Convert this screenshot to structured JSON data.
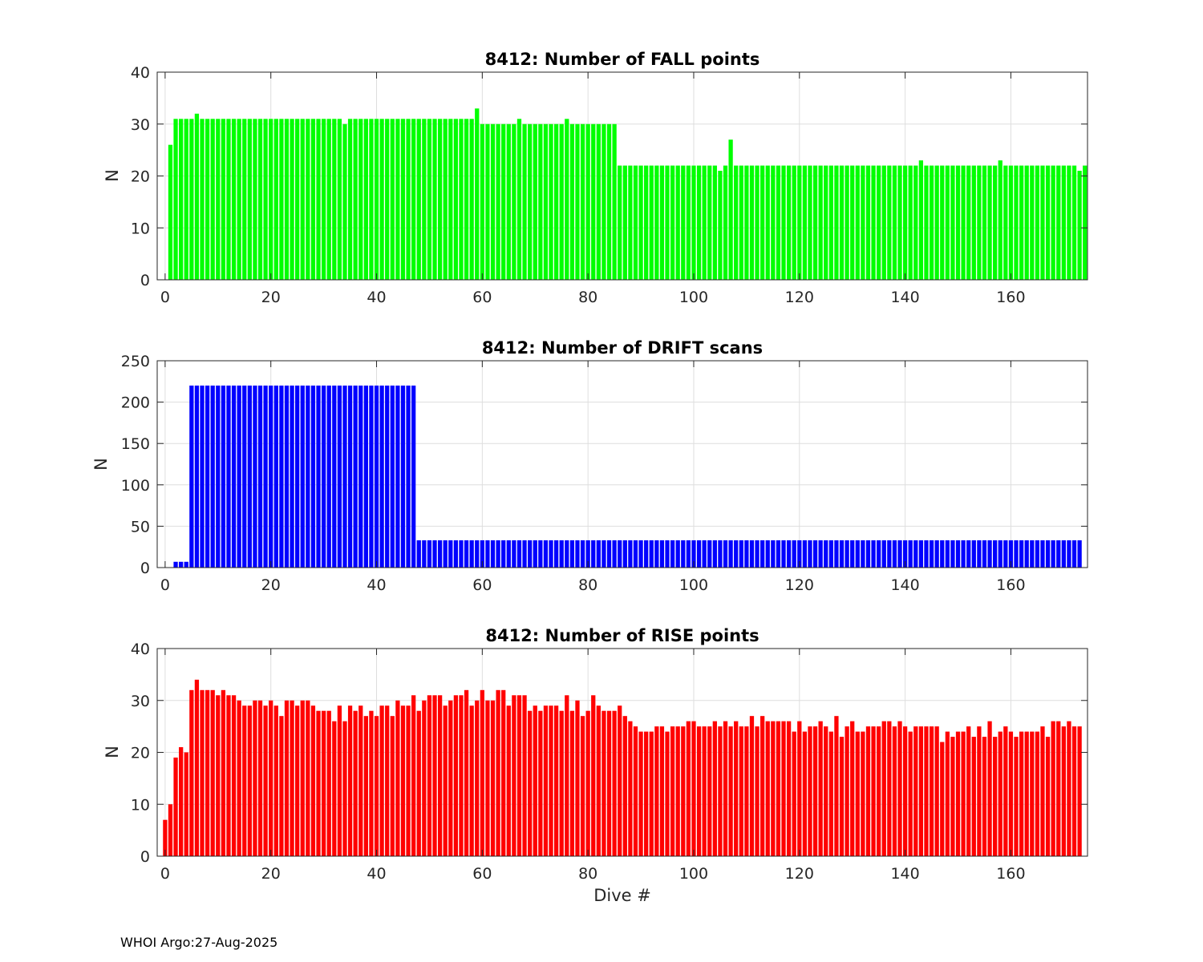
{
  "footer": {
    "note": "WHOI Argo:27-Aug-2025"
  },
  "chart_data": [
    {
      "type": "bar",
      "title": "8412: Number of FALL points",
      "xlabel": "",
      "ylabel": "N",
      "xlim": [
        -1.5,
        174.5
      ],
      "ylim": [
        0,
        40
      ],
      "xticks": [
        0,
        20,
        40,
        60,
        80,
        100,
        120,
        140,
        160
      ],
      "yticks": [
        0,
        10,
        20,
        30,
        40
      ],
      "color": "#00ff00",
      "x_start": 1,
      "values": [
        26,
        31,
        31,
        31,
        31,
        32,
        31,
        31,
        31,
        31,
        31,
        31,
        31,
        31,
        31,
        31,
        31,
        31,
        31,
        31,
        31,
        31,
        31,
        31,
        31,
        31,
        31,
        31,
        31,
        31,
        31,
        31,
        31,
        30,
        31,
        31,
        31,
        31,
        31,
        31,
        31,
        31,
        31,
        31,
        31,
        31,
        31,
        31,
        31,
        31,
        31,
        31,
        31,
        31,
        31,
        31,
        31,
        31,
        33,
        30,
        30,
        30,
        30,
        30,
        30,
        30,
        31,
        30,
        30,
        30,
        30,
        30,
        30,
        30,
        30,
        31,
        30,
        30,
        30,
        30,
        30,
        30,
        30,
        30,
        30,
        22,
        22,
        22,
        22,
        22,
        22,
        22,
        22,
        22,
        22,
        22,
        22,
        22,
        22,
        22,
        22,
        22,
        22,
        22,
        21,
        22,
        27,
        22,
        22,
        22,
        22,
        22,
        22,
        22,
        22,
        22,
        22,
        22,
        22,
        22,
        22,
        22,
        22,
        22,
        22,
        22,
        22,
        22,
        22,
        22,
        22,
        22,
        22,
        22,
        22,
        22,
        22,
        22,
        22,
        22,
        22,
        22,
        23,
        22,
        22,
        22,
        22,
        22,
        22,
        22,
        22,
        22,
        22,
        22,
        22,
        22,
        22,
        23,
        22,
        22,
        22,
        22,
        22,
        22,
        22,
        22,
        22,
        22,
        22,
        22,
        22,
        22,
        21,
        22
      ]
    },
    {
      "type": "bar",
      "title": "8412: Number of DRIFT scans",
      "xlabel": "",
      "ylabel": "N",
      "xlim": [
        -1.5,
        174.5
      ],
      "ylim": [
        0,
        250
      ],
      "xticks": [
        0,
        20,
        40,
        60,
        80,
        100,
        120,
        140,
        160
      ],
      "yticks": [
        0,
        50,
        100,
        150,
        200,
        250
      ],
      "color": "#0000ff",
      "x_start": 0,
      "values": [
        0,
        0,
        7,
        7,
        7,
        220,
        220,
        220,
        220,
        220,
        220,
        220,
        220,
        220,
        220,
        220,
        220,
        220,
        220,
        220,
        220,
        220,
        220,
        220,
        220,
        220,
        220,
        220,
        220,
        220,
        220,
        220,
        220,
        220,
        220,
        220,
        220,
        220,
        220,
        220,
        220,
        220,
        220,
        220,
        220,
        220,
        220,
        220,
        33,
        33,
        33,
        33,
        33,
        33,
        33,
        33,
        33,
        33,
        33,
        33,
        33,
        33,
        33,
        33,
        33,
        33,
        33,
        33,
        33,
        33,
        33,
        33,
        33,
        33,
        33,
        33,
        33,
        33,
        33,
        33,
        33,
        33,
        33,
        33,
        33,
        33,
        33,
        33,
        33,
        33,
        33,
        33,
        33,
        33,
        33,
        33,
        33,
        33,
        33,
        33,
        33,
        33,
        33,
        33,
        33,
        33,
        33,
        33,
        33,
        33,
        33,
        33,
        33,
        33,
        33,
        33,
        33,
        33,
        33,
        33,
        33,
        33,
        33,
        33,
        33,
        33,
        33,
        33,
        33,
        33,
        33,
        33,
        33,
        33,
        33,
        33,
        33,
        33,
        33,
        33,
        33,
        33,
        33,
        33,
        33,
        33,
        33,
        33,
        33,
        33,
        33,
        33,
        33,
        33,
        33,
        33,
        33,
        33,
        33,
        33,
        33,
        33,
        33,
        33,
        33,
        33,
        33,
        33,
        33,
        33,
        33,
        33,
        33,
        33
      ]
    },
    {
      "type": "bar",
      "title": "8412: Number of RISE points",
      "xlabel": "Dive #",
      "ylabel": "N",
      "xlim": [
        -1.5,
        174.5
      ],
      "ylim": [
        0,
        40
      ],
      "xticks": [
        0,
        20,
        40,
        60,
        80,
        100,
        120,
        140,
        160
      ],
      "yticks": [
        0,
        10,
        20,
        30,
        40
      ],
      "color": "#ff0000",
      "x_start": 0,
      "values": [
        7,
        10,
        19,
        21,
        20,
        32,
        34,
        32,
        32,
        32,
        31,
        32,
        31,
        31,
        30,
        29,
        29,
        30,
        30,
        29,
        30,
        29,
        27,
        30,
        30,
        29,
        30,
        30,
        29,
        28,
        28,
        28,
        26,
        29,
        26,
        29,
        28,
        29,
        27,
        28,
        27,
        29,
        29,
        27,
        30,
        29,
        29,
        31,
        28,
        30,
        31,
        31,
        31,
        29,
        30,
        31,
        31,
        32,
        29,
        30,
        32,
        30,
        30,
        32,
        32,
        29,
        31,
        31,
        31,
        28,
        29,
        28,
        29,
        29,
        29,
        28,
        31,
        28,
        30,
        27,
        28,
        31,
        29,
        28,
        28,
        28,
        29,
        27,
        26,
        25,
        24,
        24,
        24,
        25,
        25,
        24,
        25,
        25,
        25,
        26,
        26,
        25,
        25,
        25,
        26,
        25,
        26,
        25,
        26,
        25,
        25,
        27,
        25,
        27,
        26,
        26,
        26,
        26,
        26,
        24,
        26,
        24,
        25,
        25,
        26,
        25,
        24,
        27,
        23,
        25,
        26,
        24,
        24,
        25,
        25,
        25,
        26,
        26,
        25,
        26,
        25,
        24,
        25,
        25,
        25,
        25,
        25,
        22,
        24,
        23,
        24,
        24,
        25,
        23,
        25,
        23,
        26,
        23,
        24,
        25,
        24,
        23,
        24,
        24,
        24,
        24,
        25,
        23,
        26,
        26,
        25,
        26,
        25,
        25
      ]
    }
  ]
}
